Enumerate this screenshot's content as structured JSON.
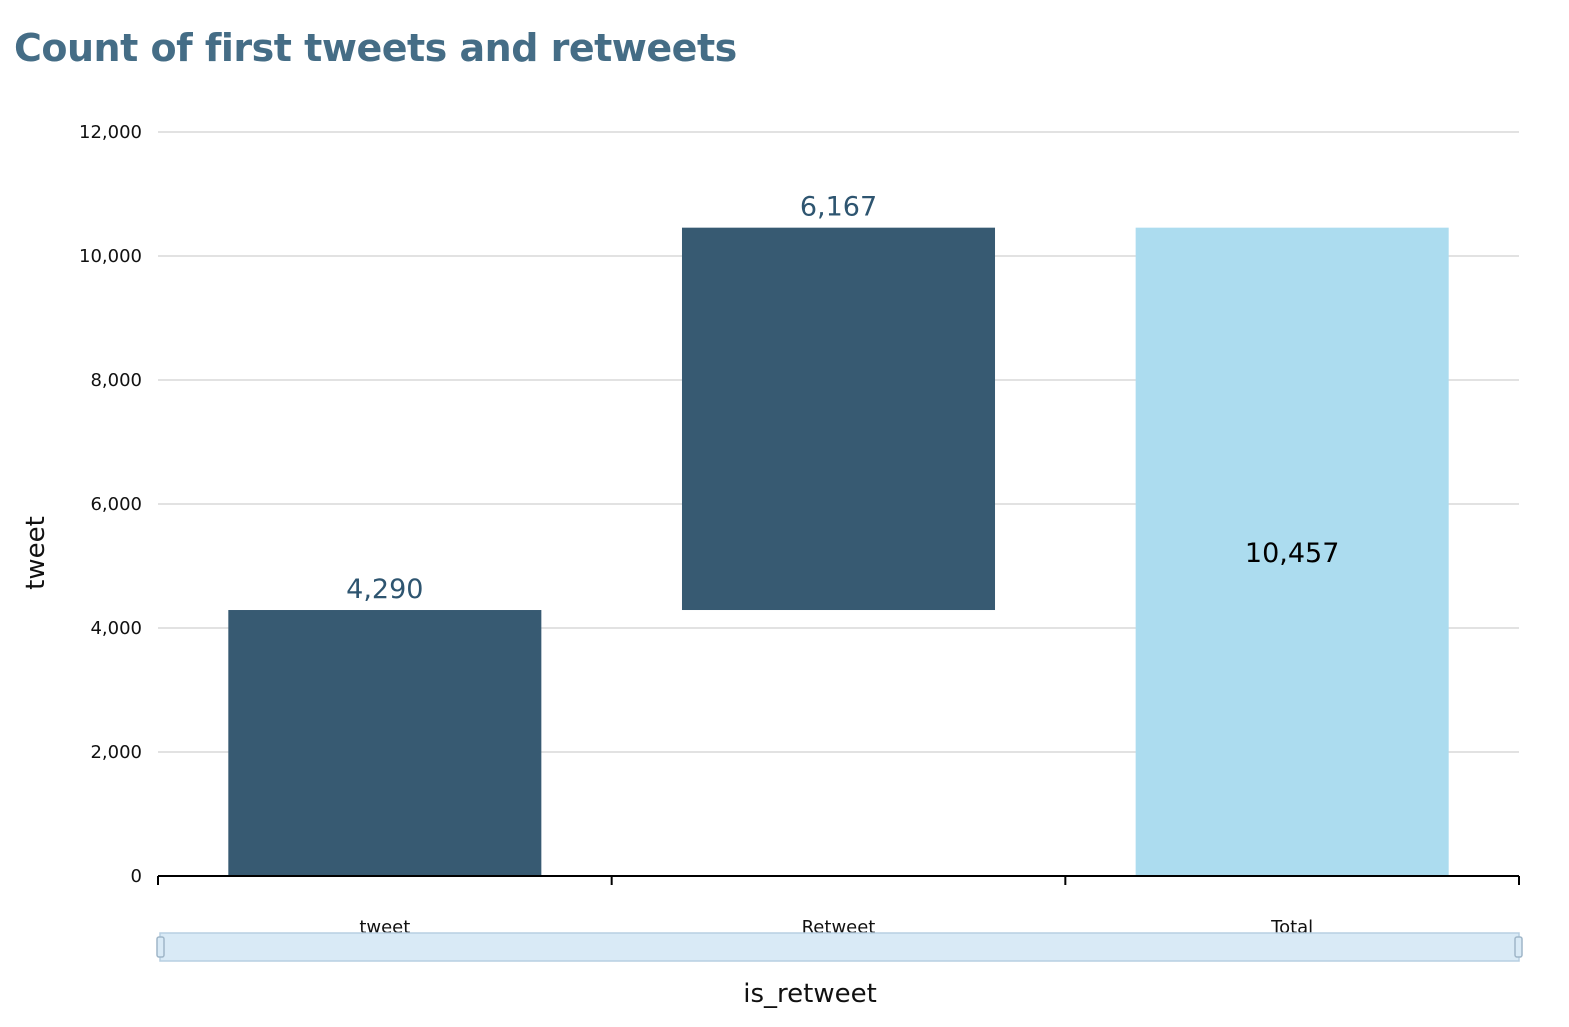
{
  "chart_data": {
    "type": "bar",
    "subtype": "waterfall",
    "title": "Count of first tweets and retweets",
    "xlabel": "is_retweet",
    "ylabel": "tweet",
    "ylim": [
      0,
      12000
    ],
    "yticks": [
      0,
      2000,
      4000,
      6000,
      8000,
      10000,
      12000
    ],
    "ytick_labels": [
      "0",
      "2,000",
      "4,000",
      "6,000",
      "8,000",
      "10,000",
      "12,000"
    ],
    "grid": true,
    "categories": [
      "tweet",
      "Retweet",
      "Total"
    ],
    "steps": [
      {
        "category": "tweet",
        "base": 0,
        "value": 4290,
        "label": "4,290",
        "kind": "increase"
      },
      {
        "category": "Retweet",
        "base": 4290,
        "value": 6167,
        "label": "6,167",
        "kind": "increase"
      },
      {
        "category": "Total",
        "base": 0,
        "value": 10457,
        "label": "10,457",
        "kind": "total"
      }
    ],
    "colors": {
      "increase": "#375a72",
      "total": "#acdcef",
      "increase_label": "#2e5570",
      "total_label": "#000000",
      "grid": "#d9d9d9",
      "axis": "#000000",
      "scrollbar": "#d9eaf6",
      "scrollbar_border": "#b7cfe2"
    }
  }
}
